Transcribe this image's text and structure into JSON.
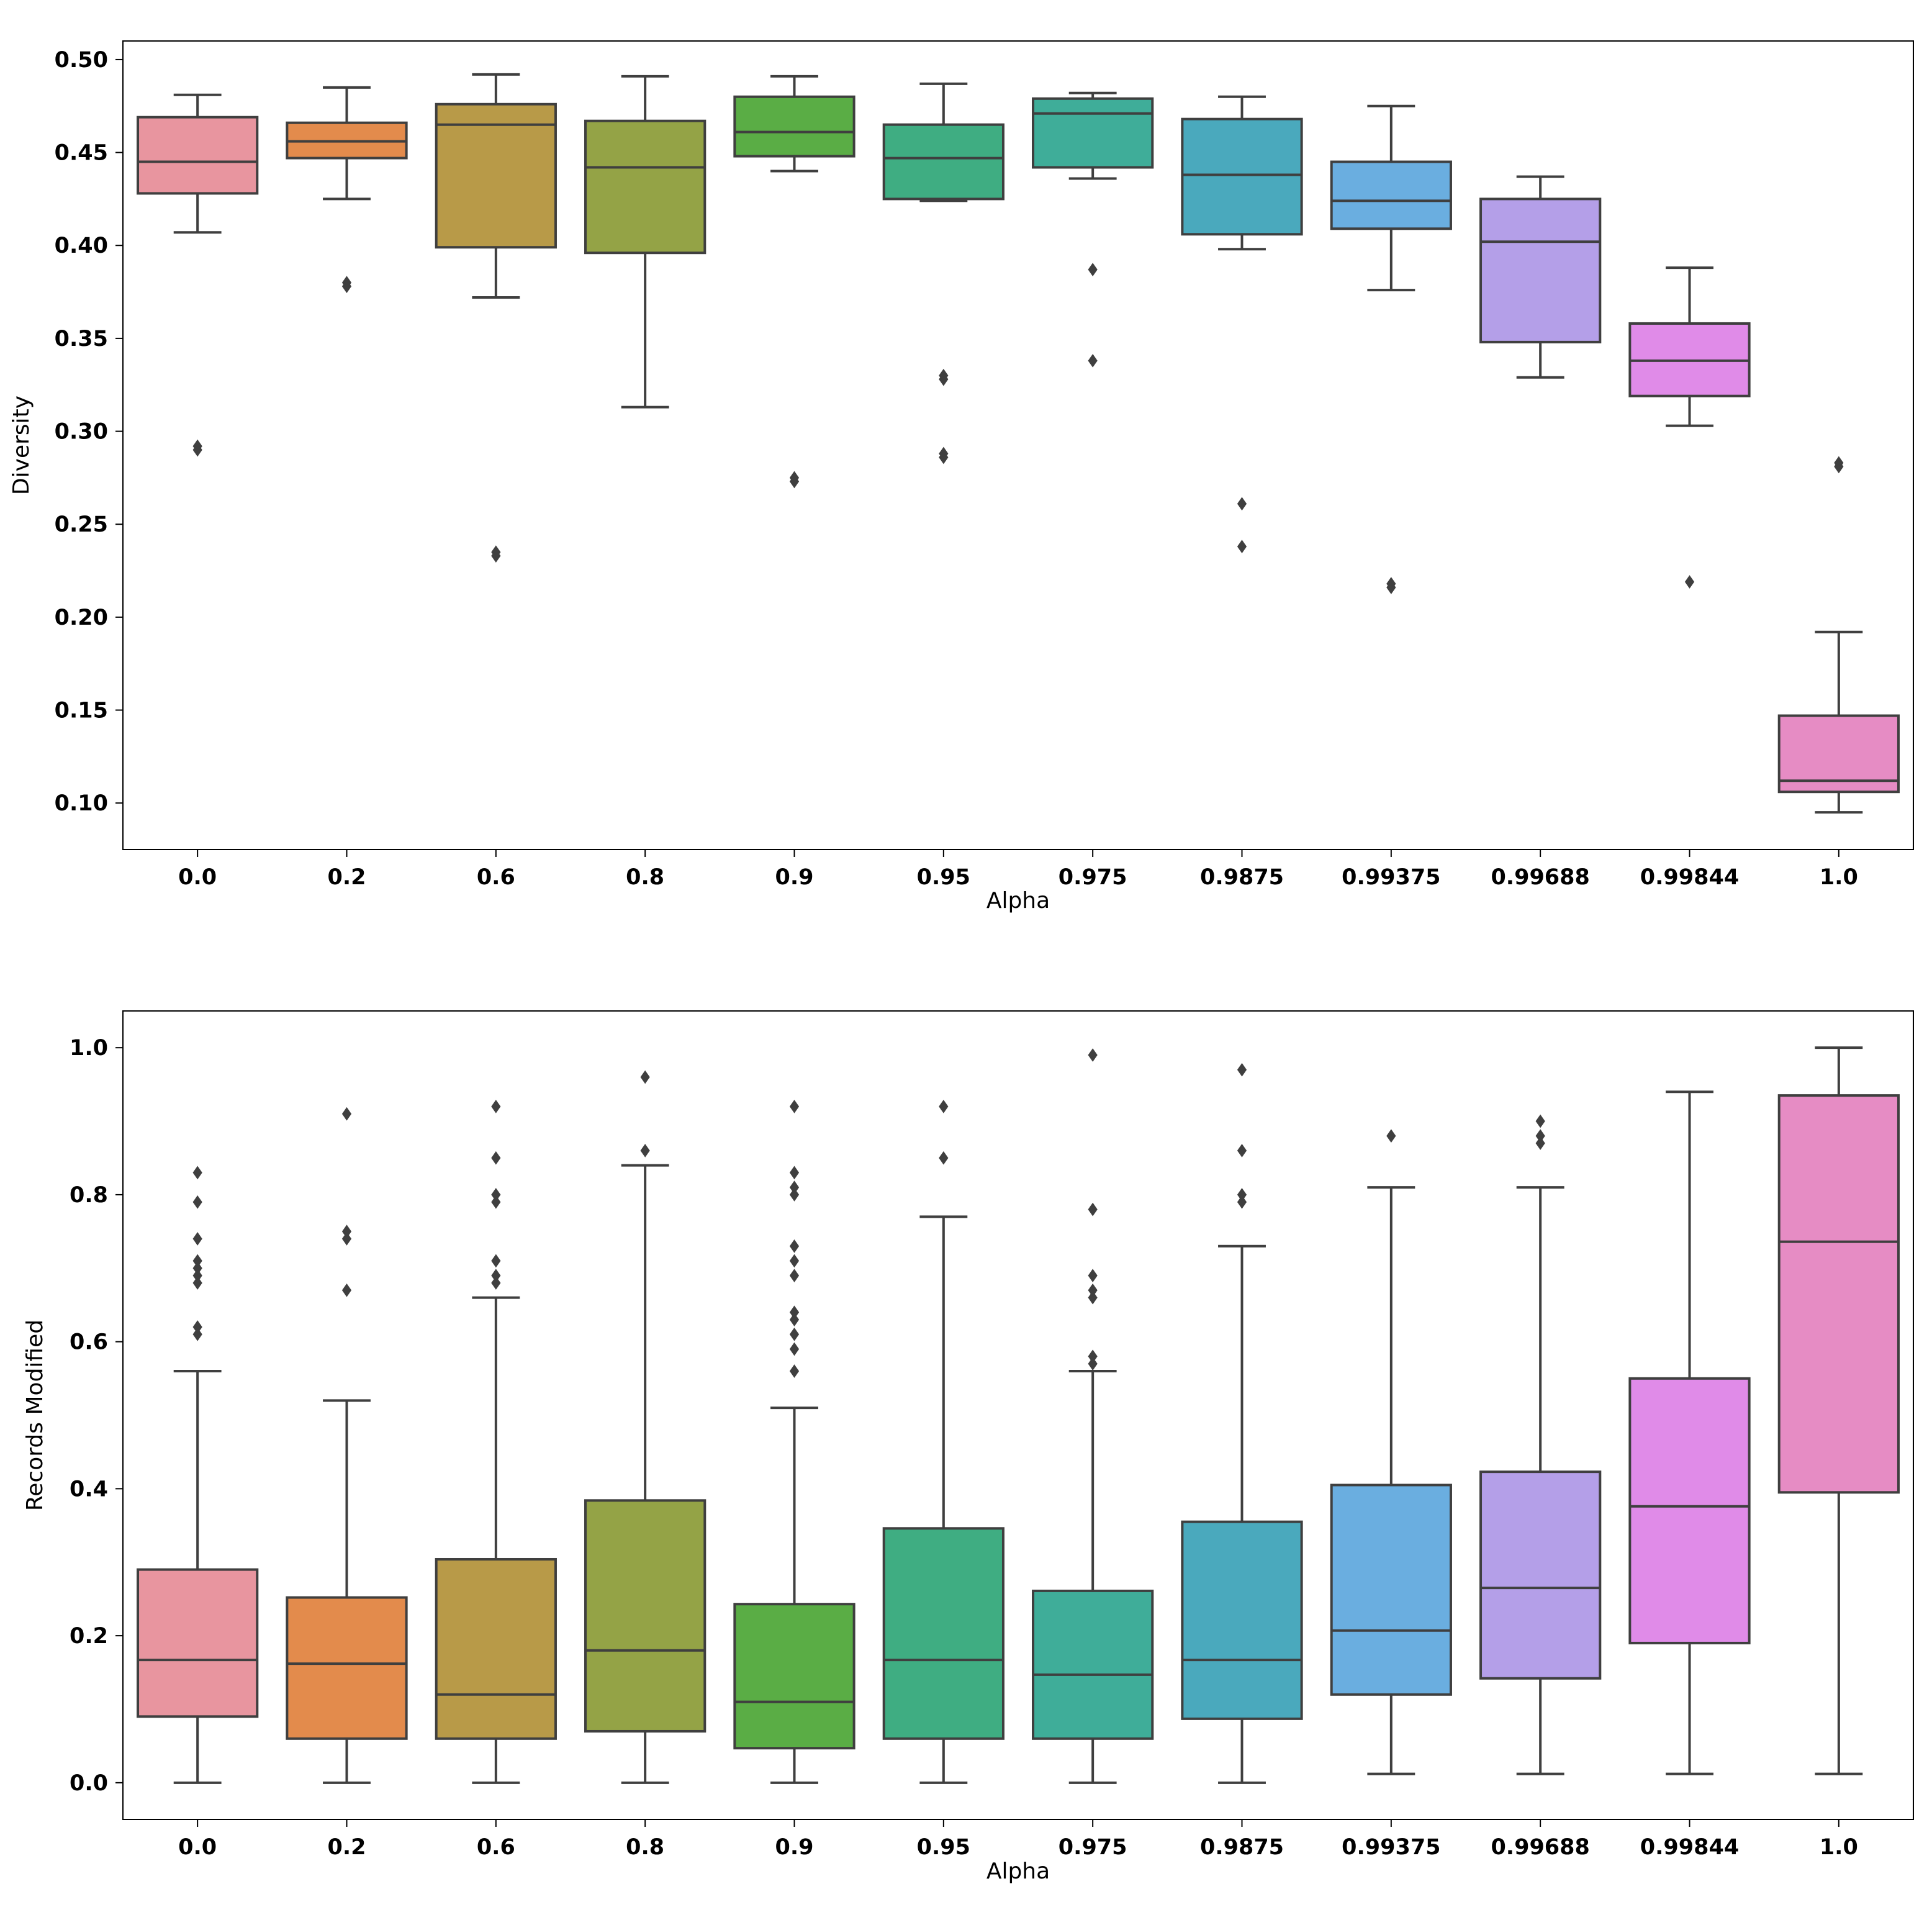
{
  "chart_data": [
    {
      "type": "box",
      "title": "",
      "xlabel": "Alpha",
      "ylabel": "Diversity",
      "ylim": [
        0.075,
        0.51
      ],
      "yticks": [
        "0.10",
        "0.15",
        "0.20",
        "0.25",
        "0.30",
        "0.35",
        "0.40",
        "0.45",
        "0.50"
      ],
      "categories": [
        "0.0",
        "0.2",
        "0.6",
        "0.8",
        "0.9",
        "0.95",
        "0.975",
        "0.9875",
        "0.99375",
        "0.99688",
        "0.99844",
        "1.0"
      ],
      "colors": [
        "#e8959f",
        "#e38b4c",
        "#b89a48",
        "#94a346",
        "#5aad45",
        "#3fad82",
        "#3fad99",
        "#4aa9bd",
        "#6aaee0",
        "#b49fe8",
        "#e08be8",
        "#e68cc4"
      ],
      "boxes": [
        {
          "whisker_low": 0.407,
          "q1": 0.428,
          "median": 0.445,
          "q3": 0.469,
          "whisker_high": 0.481,
          "outliers": [
            0.29,
            0.292
          ]
        },
        {
          "whisker_low": 0.425,
          "q1": 0.447,
          "median": 0.456,
          "q3": 0.466,
          "whisker_high": 0.485,
          "outliers": [
            0.378,
            0.38
          ]
        },
        {
          "whisker_low": 0.372,
          "q1": 0.399,
          "median": 0.465,
          "q3": 0.476,
          "whisker_high": 0.492,
          "outliers": [
            0.233,
            0.235
          ]
        },
        {
          "whisker_low": 0.313,
          "q1": 0.396,
          "median": 0.442,
          "q3": 0.467,
          "whisker_high": 0.491,
          "outliers": []
        },
        {
          "whisker_low": 0.44,
          "q1": 0.448,
          "median": 0.461,
          "q3": 0.48,
          "whisker_high": 0.491,
          "outliers": [
            0.273,
            0.275
          ]
        },
        {
          "whisker_low": 0.424,
          "q1": 0.425,
          "median": 0.447,
          "q3": 0.465,
          "whisker_high": 0.487,
          "outliers": [
            0.286,
            0.288,
            0.328,
            0.33
          ]
        },
        {
          "whisker_low": 0.436,
          "q1": 0.442,
          "median": 0.471,
          "q3": 0.479,
          "whisker_high": 0.482,
          "outliers": [
            0.338,
            0.387
          ]
        },
        {
          "whisker_low": 0.398,
          "q1": 0.406,
          "median": 0.438,
          "q3": 0.468,
          "whisker_high": 0.48,
          "outliers": [
            0.238,
            0.261
          ]
        },
        {
          "whisker_low": 0.376,
          "q1": 0.409,
          "median": 0.424,
          "q3": 0.445,
          "whisker_high": 0.475,
          "outliers": [
            0.216,
            0.218
          ]
        },
        {
          "whisker_low": 0.329,
          "q1": 0.348,
          "median": 0.402,
          "q3": 0.425,
          "whisker_high": 0.437,
          "outliers": []
        },
        {
          "whisker_low": 0.303,
          "q1": 0.319,
          "median": 0.338,
          "q3": 0.358,
          "whisker_high": 0.388,
          "outliers": [
            0.219
          ]
        },
        {
          "whisker_low": 0.095,
          "q1": 0.106,
          "median": 0.112,
          "q3": 0.147,
          "whisker_high": 0.192,
          "outliers": [
            0.281,
            0.283
          ]
        }
      ]
    },
    {
      "type": "box",
      "title": "",
      "xlabel": "Alpha",
      "ylabel": "Records Modified",
      "ylim": [
        -0.05,
        1.05
      ],
      "yticks": [
        "0.0",
        "0.2",
        "0.4",
        "0.6",
        "0.8",
        "1.0"
      ],
      "categories": [
        "0.0",
        "0.2",
        "0.6",
        "0.8",
        "0.9",
        "0.95",
        "0.975",
        "0.9875",
        "0.99375",
        "0.99688",
        "0.99844",
        "1.0"
      ],
      "colors": [
        "#e8959f",
        "#e38b4c",
        "#b89a48",
        "#94a346",
        "#5aad45",
        "#3fad82",
        "#3fad99",
        "#4aa9bd",
        "#6aaee0",
        "#b49fe8",
        "#e08be8",
        "#e68cc4"
      ],
      "boxes": [
        {
          "whisker_low": 0.0,
          "q1": 0.09,
          "median": 0.167,
          "q3": 0.29,
          "whisker_high": 0.56,
          "outliers": [
            0.61,
            0.62,
            0.68,
            0.69,
            0.7,
            0.71,
            0.74,
            0.79,
            0.83
          ]
        },
        {
          "whisker_low": 0.0,
          "q1": 0.06,
          "median": 0.162,
          "q3": 0.252,
          "whisker_high": 0.52,
          "outliers": [
            0.67,
            0.74,
            0.75,
            0.91
          ]
        },
        {
          "whisker_low": 0.0,
          "q1": 0.06,
          "median": 0.12,
          "q3": 0.304,
          "whisker_high": 0.66,
          "outliers": [
            0.68,
            0.69,
            0.71,
            0.79,
            0.8,
            0.85,
            0.92
          ]
        },
        {
          "whisker_low": 0.0,
          "q1": 0.07,
          "median": 0.18,
          "q3": 0.384,
          "whisker_high": 0.84,
          "outliers": [
            0.86,
            0.96
          ]
        },
        {
          "whisker_low": 0.0,
          "q1": 0.047,
          "median": 0.11,
          "q3": 0.243,
          "whisker_high": 0.51,
          "outliers": [
            0.56,
            0.59,
            0.61,
            0.63,
            0.64,
            0.69,
            0.71,
            0.73,
            0.8,
            0.81,
            0.83,
            0.92
          ]
        },
        {
          "whisker_low": 0.0,
          "q1": 0.06,
          "median": 0.167,
          "q3": 0.346,
          "whisker_high": 0.77,
          "outliers": [
            0.85,
            0.92
          ]
        },
        {
          "whisker_low": 0.0,
          "q1": 0.06,
          "median": 0.147,
          "q3": 0.261,
          "whisker_high": 0.56,
          "outliers": [
            0.57,
            0.58,
            0.66,
            0.67,
            0.69,
            0.78,
            0.99
          ]
        },
        {
          "whisker_low": 0.0,
          "q1": 0.087,
          "median": 0.167,
          "q3": 0.355,
          "whisker_high": 0.73,
          "outliers": [
            0.79,
            0.8,
            0.86,
            0.97
          ]
        },
        {
          "whisker_low": 0.012,
          "q1": 0.12,
          "median": 0.207,
          "q3": 0.405,
          "whisker_high": 0.81,
          "outliers": [
            0.88
          ]
        },
        {
          "whisker_low": 0.012,
          "q1": 0.142,
          "median": 0.265,
          "q3": 0.423,
          "whisker_high": 0.81,
          "outliers": [
            0.87,
            0.88,
            0.9
          ]
        },
        {
          "whisker_low": 0.012,
          "q1": 0.19,
          "median": 0.376,
          "q3": 0.55,
          "whisker_high": 0.94,
          "outliers": []
        },
        {
          "whisker_low": 0.012,
          "q1": 0.395,
          "median": 0.736,
          "q3": 0.935,
          "whisker_high": 1.0,
          "outliers": []
        }
      ]
    }
  ]
}
